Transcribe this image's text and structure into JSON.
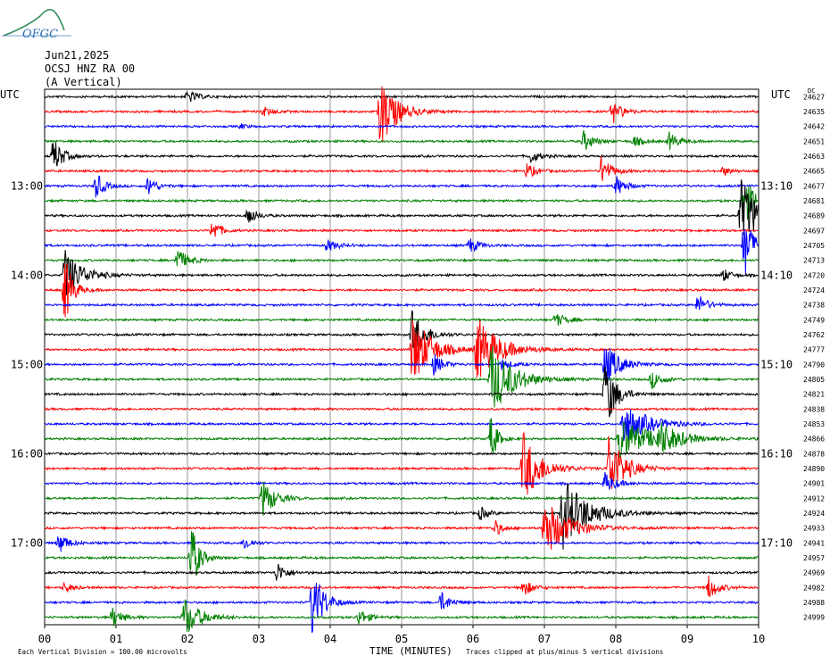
{
  "header": {
    "logo_text": "OFGC",
    "date": "Jun21,2025",
    "station": "OCSJ HNZ RA 00",
    "orientation": "(A Vertical)",
    "left_tz": "UTC",
    "right_tz": "UTC",
    "right_corner_mark": "DC"
  },
  "colors": {
    "trace": [
      "#000000",
      "#ff0000",
      "#0000ff",
      "#008000"
    ],
    "grid": "#9a9a9a"
  },
  "chart_data": {
    "type": "line",
    "description_kind": "helicorder",
    "xlabel": "TIME (MINUTES)",
    "x_ticks": [
      "00",
      "01",
      "02",
      "03",
      "04",
      "05",
      "06",
      "07",
      "08",
      "09",
      "10"
    ],
    "xlim": [
      0,
      10
    ],
    "rows": 36,
    "row_minutes": 10,
    "left_hour_labels": [
      {
        "row": 6,
        "label": "13:00"
      },
      {
        "row": 12,
        "label": "14:00"
      },
      {
        "row": 18,
        "label": "15:00"
      },
      {
        "row": 24,
        "label": "16:00"
      },
      {
        "row": 30,
        "label": "17:00"
      }
    ],
    "right_hour_labels": [
      {
        "row": 6,
        "label": "13:10"
      },
      {
        "row": 12,
        "label": "14:10"
      },
      {
        "row": 18,
        "label": "15:10"
      },
      {
        "row": 24,
        "label": "16:10"
      },
      {
        "row": 30,
        "label": "17:10"
      }
    ],
    "row_values": [
      "24627",
      "24635",
      "24642",
      "24651",
      "24663",
      "24665",
      "24677",
      "24681",
      "24689",
      "24697",
      "24705",
      "24713",
      "24720",
      "24724",
      "24738",
      "24749",
      "24762",
      "24777",
      "24790",
      "24805",
      "24821",
      "24838",
      "24853",
      "24866",
      "24878",
      "24890",
      "24901",
      "24912",
      "24924",
      "24933",
      "24941",
      "24957",
      "24969",
      "24982",
      "24988",
      "24999"
    ],
    "footer_left": "Each Vertical Division =  100.00 microvolts",
    "footer_right": "Traces clipped at plus/minus 5 vertical divisions",
    "events": [
      {
        "row": 0,
        "min": 2.0,
        "amp": 8,
        "dur": 0.12
      },
      {
        "row": 1,
        "min": 3.05,
        "amp": 6,
        "dur": 0.12
      },
      {
        "row": 1,
        "min": 4.7,
        "amp": 42,
        "dur": 0.2
      },
      {
        "row": 1,
        "min": 7.95,
        "amp": 14,
        "dur": 0.12
      },
      {
        "row": 2,
        "min": 2.75,
        "amp": 3,
        "dur": 0.08
      },
      {
        "row": 3,
        "min": 7.55,
        "amp": 12,
        "dur": 0.12
      },
      {
        "row": 3,
        "min": 8.25,
        "amp": 6,
        "dur": 0.12
      },
      {
        "row": 3,
        "min": 8.75,
        "amp": 10,
        "dur": 0.12
      },
      {
        "row": 4,
        "min": 0.12,
        "amp": 22,
        "dur": 0.12
      },
      {
        "row": 4,
        "min": 6.8,
        "amp": 8,
        "dur": 0.12
      },
      {
        "row": 5,
        "min": 6.75,
        "amp": 9,
        "dur": 0.12
      },
      {
        "row": 5,
        "min": 7.8,
        "amp": 18,
        "dur": 0.12
      },
      {
        "row": 5,
        "min": 9.5,
        "amp": 5,
        "dur": 0.1
      },
      {
        "row": 6,
        "min": 0.72,
        "amp": 16,
        "dur": 0.1
      },
      {
        "row": 6,
        "min": 1.45,
        "amp": 12,
        "dur": 0.1
      },
      {
        "row": 6,
        "min": 8.0,
        "amp": 12,
        "dur": 0.12
      },
      {
        "row": 7,
        "min": 9.8,
        "amp": 30,
        "dur": 0.12
      },
      {
        "row": 8,
        "min": 2.85,
        "amp": 12,
        "dur": 0.1
      },
      {
        "row": 8,
        "min": 9.75,
        "amp": 42,
        "dur": 0.22
      },
      {
        "row": 9,
        "min": 2.35,
        "amp": 14,
        "dur": 0.1
      },
      {
        "row": 10,
        "min": 3.95,
        "amp": 7,
        "dur": 0.14
      },
      {
        "row": 10,
        "min": 5.95,
        "amp": 9,
        "dur": 0.12
      },
      {
        "row": 10,
        "min": 9.8,
        "amp": 42,
        "dur": 0.1
      },
      {
        "row": 11,
        "min": 1.85,
        "amp": 14,
        "dur": 0.14
      },
      {
        "row": 12,
        "min": 0.28,
        "amp": 30,
        "dur": 0.22
      },
      {
        "row": 12,
        "min": 9.5,
        "amp": 8,
        "dur": 0.1
      },
      {
        "row": 13,
        "min": 0.28,
        "amp": 42,
        "dur": 0.1
      },
      {
        "row": 14,
        "min": 9.15,
        "amp": 12,
        "dur": 0.12
      },
      {
        "row": 15,
        "min": 7.15,
        "amp": 8,
        "dur": 0.14
      },
      {
        "row": 16,
        "min": 5.15,
        "amp": 30,
        "dur": 0.16
      },
      {
        "row": 17,
        "min": 5.15,
        "amp": 42,
        "dur": 0.24
      },
      {
        "row": 17,
        "min": 6.05,
        "amp": 38,
        "dur": 0.28
      },
      {
        "row": 18,
        "min": 5.45,
        "amp": 12,
        "dur": 0.12
      },
      {
        "row": 18,
        "min": 6.4,
        "amp": 6,
        "dur": 0.14
      },
      {
        "row": 18,
        "min": 7.85,
        "amp": 26,
        "dur": 0.18
      },
      {
        "row": 19,
        "min": 6.25,
        "amp": 42,
        "dur": 0.28
      },
      {
        "row": 19,
        "min": 8.5,
        "amp": 10,
        "dur": 0.14
      },
      {
        "row": 20,
        "min": 7.85,
        "amp": 42,
        "dur": 0.14
      },
      {
        "row": 22,
        "min": 8.1,
        "amp": 26,
        "dur": 0.3
      },
      {
        "row": 23,
        "min": 8.05,
        "amp": 24,
        "dur": 0.4
      },
      {
        "row": 23,
        "min": 8.6,
        "amp": 16,
        "dur": 0.24
      },
      {
        "row": 23,
        "min": 6.25,
        "amp": 30,
        "dur": 0.08
      },
      {
        "row": 25,
        "min": 6.7,
        "amp": 42,
        "dur": 0.22
      },
      {
        "row": 25,
        "min": 7.9,
        "amp": 40,
        "dur": 0.2
      },
      {
        "row": 26,
        "min": 7.85,
        "amp": 12,
        "dur": 0.14
      },
      {
        "row": 27,
        "min": 3.05,
        "amp": 22,
        "dur": 0.16
      },
      {
        "row": 28,
        "min": 7.25,
        "amp": 42,
        "dur": 0.32
      },
      {
        "row": 28,
        "min": 6.1,
        "amp": 8,
        "dur": 0.1
      },
      {
        "row": 29,
        "min": 7.0,
        "amp": 34,
        "dur": 0.3
      },
      {
        "row": 29,
        "min": 6.3,
        "amp": 10,
        "dur": 0.1
      },
      {
        "row": 30,
        "min": 0.2,
        "amp": 12,
        "dur": 0.12
      },
      {
        "row": 30,
        "min": 2.8,
        "amp": 8,
        "dur": 0.1
      },
      {
        "row": 31,
        "min": 2.05,
        "amp": 42,
        "dur": 0.1
      },
      {
        "row": 32,
        "min": 3.25,
        "amp": 12,
        "dur": 0.12
      },
      {
        "row": 33,
        "min": 0.28,
        "amp": 6,
        "dur": 0.1
      },
      {
        "row": 33,
        "min": 6.7,
        "amp": 10,
        "dur": 0.12
      },
      {
        "row": 33,
        "min": 9.3,
        "amp": 14,
        "dur": 0.12
      },
      {
        "row": 34,
        "min": 3.75,
        "amp": 42,
        "dur": 0.14
      },
      {
        "row": 34,
        "min": 5.55,
        "amp": 12,
        "dur": 0.12
      },
      {
        "row": 35,
        "min": 0.95,
        "amp": 12,
        "dur": 0.12
      },
      {
        "row": 35,
        "min": 1.95,
        "amp": 24,
        "dur": 0.2
      },
      {
        "row": 35,
        "min": 4.4,
        "amp": 10,
        "dur": 0.12
      }
    ]
  }
}
